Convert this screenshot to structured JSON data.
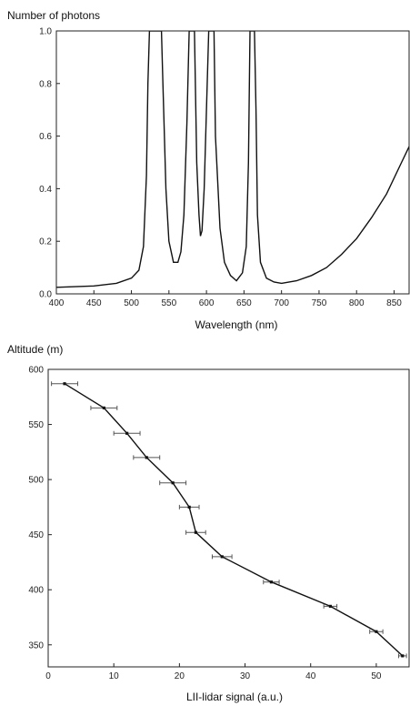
{
  "chart_data": [
    {
      "type": "line",
      "ylabel": "Number of photons",
      "xlabel": "Wavelength (nm)",
      "xlim": [
        400,
        870
      ],
      "ylim": [
        0.0,
        1.0
      ],
      "xticks": [
        400,
        450,
        500,
        550,
        600,
        650,
        700,
        750,
        800,
        850
      ],
      "yticks": [
        "0.0",
        "0.2",
        "0.4",
        "0.6",
        "0.8",
        "1.0"
      ],
      "grid": false,
      "series": [
        {
          "x": [
            400,
            450,
            480,
            500,
            510,
            516,
            520,
            522,
            524,
            540,
            542,
            546,
            550,
            556,
            562,
            566,
            570,
            574,
            577,
            580,
            584,
            587,
            590,
            592,
            594,
            597,
            600,
            603,
            606,
            610,
            612,
            618,
            624,
            632,
            640,
            648,
            653,
            656,
            658,
            664,
            666,
            668,
            672,
            680,
            690,
            700,
            720,
            740,
            760,
            780,
            800,
            820,
            840,
            860,
            870
          ],
          "y": [
            0.025,
            0.03,
            0.04,
            0.06,
            0.09,
            0.18,
            0.45,
            0.8,
            1.0,
            1.0,
            0.8,
            0.4,
            0.2,
            0.12,
            0.12,
            0.16,
            0.3,
            0.65,
            1.0,
            1.0,
            1.0,
            0.5,
            0.3,
            0.22,
            0.24,
            0.4,
            0.7,
            1.0,
            1.0,
            1.0,
            0.6,
            0.25,
            0.12,
            0.07,
            0.05,
            0.08,
            0.18,
            0.5,
            1.0,
            1.0,
            0.7,
            0.3,
            0.12,
            0.06,
            0.045,
            0.04,
            0.05,
            0.07,
            0.1,
            0.15,
            0.21,
            0.29,
            0.38,
            0.5,
            0.56
          ]
        }
      ]
    },
    {
      "type": "line",
      "ylabel": "Altitude (m)",
      "xlabel": "LII-lidar signal (a.u.)",
      "xlim": [
        0,
        55
      ],
      "ylim": [
        330,
        600
      ],
      "xticks": [
        0,
        10,
        20,
        30,
        40,
        50
      ],
      "yticks": [
        350,
        400,
        450,
        500,
        550,
        600
      ],
      "grid": false,
      "series": [
        {
          "x": [
            2.5,
            8.5,
            12.0,
            15.0,
            19.0,
            21.5,
            22.5,
            26.5,
            34.0,
            43.0,
            50.0,
            54.0
          ],
          "y": [
            587,
            565,
            542,
            520,
            497,
            475,
            452,
            430,
            407,
            385,
            362,
            340
          ],
          "x_error": [
            2.0,
            2.0,
            2.0,
            2.0,
            2.0,
            1.5,
            1.5,
            1.5,
            1.2,
            1.0,
            1.0,
            0.6
          ]
        }
      ]
    }
  ]
}
